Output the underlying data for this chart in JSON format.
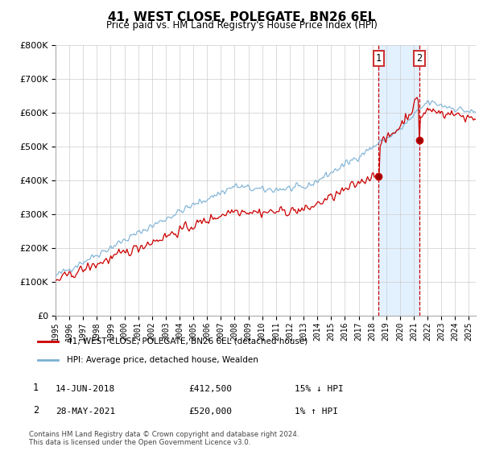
{
  "title": "41, WEST CLOSE, POLEGATE, BN26 6EL",
  "subtitle": "Price paid vs. HM Land Registry's House Price Index (HPI)",
  "ylim": [
    0,
    800000
  ],
  "ytick_values": [
    0,
    100000,
    200000,
    300000,
    400000,
    500000,
    600000,
    700000,
    800000
  ],
  "legend_label_red": "41, WEST CLOSE, POLEGATE, BN26 6EL (detached house)",
  "legend_label_blue": "HPI: Average price, detached house, Wealden",
  "annotation1_label": "1",
  "annotation1_date": "14-JUN-2018",
  "annotation1_price": "£412,500",
  "annotation1_hpi": "15% ↓ HPI",
  "annotation2_label": "2",
  "annotation2_date": "28-MAY-2021",
  "annotation2_price": "£520,000",
  "annotation2_hpi": "1% ↑ HPI",
  "footnote": "Contains HM Land Registry data © Crown copyright and database right 2024.\nThis data is licensed under the Open Government Licence v3.0.",
  "red_color": "#cc0000",
  "blue_color": "#7ab0d4",
  "shade_color": "#ddeeff",
  "vline_color": "#cc0000",
  "marker1_x": 2018.45,
  "marker1_y": 412500,
  "marker2_x": 2021.41,
  "marker2_y": 520000,
  "vline1_x": 2018.45,
  "vline2_x": 2021.41,
  "xlim_start": 1995,
  "xlim_end": 2025.5
}
